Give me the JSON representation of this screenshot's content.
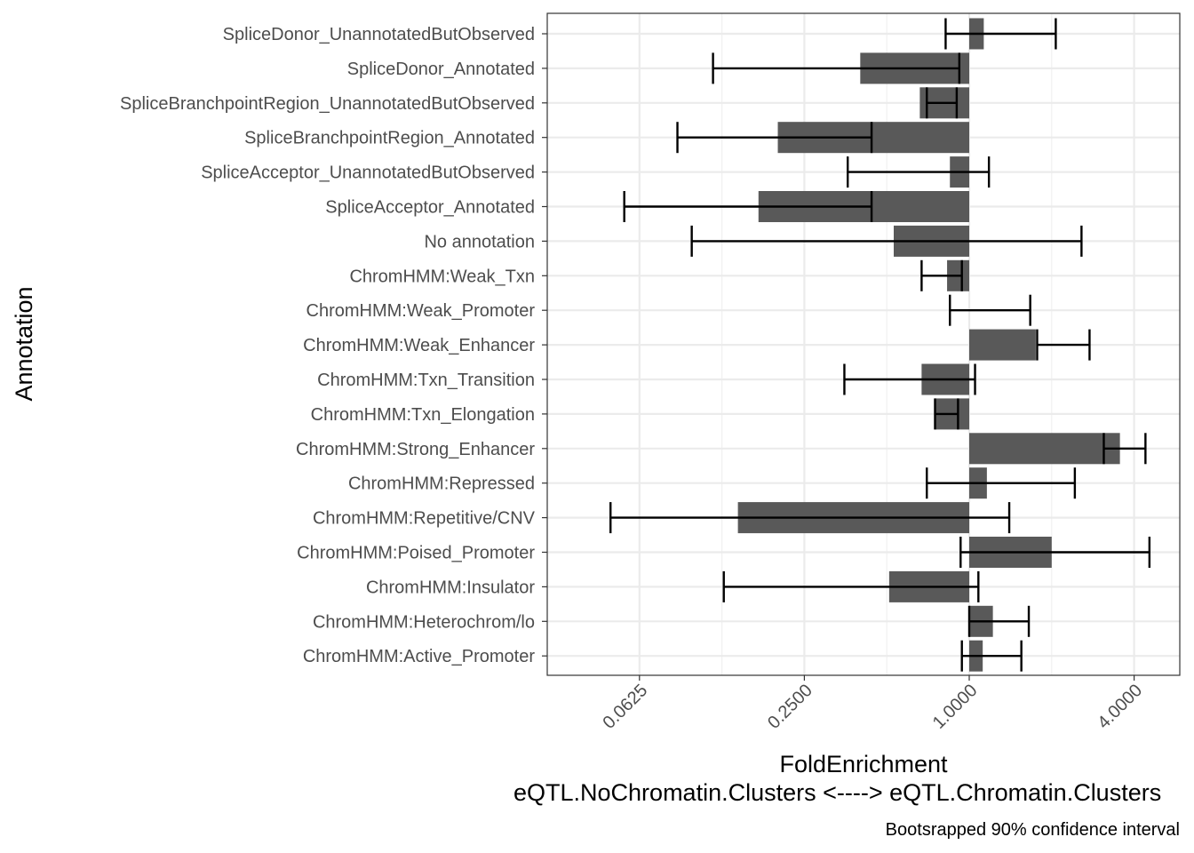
{
  "chart_data": {
    "type": "bar",
    "orientation": "horizontal",
    "xscale": "log2",
    "ylabel": "Annotation",
    "xlabel_line1": "FoldEnrichment",
    "xlabel_line2": "eQTL.NoChromatin.Clusters <----> eQTL.Chromatin.Clusters",
    "caption": "Bootsrapped 90% confidence interval",
    "xlim": [
      0.032,
      5.0
    ],
    "xticks": [
      0.0625,
      0.25,
      1.0,
      4.0
    ],
    "xtick_labels": [
      "0.0625",
      "0.2500",
      "1.0000",
      "4.0000"
    ],
    "baseline": 1.0,
    "grid": true,
    "bar_color": "#595959",
    "categories": [
      "SpliceDonor_UnannotatedButObserved",
      "SpliceDonor_Annotated",
      "SpliceBranchpointRegion_UnannotatedButObserved",
      "SpliceBranchpointRegion_Annotated",
      "SpliceAcceptor_UnannotatedButObserved",
      "SpliceAcceptor_Annotated",
      "No annotation",
      "ChromHMM:Weak_Txn",
      "ChromHMM:Weak_Promoter",
      "ChromHMM:Weak_Enhancer",
      "ChromHMM:Txn_Transition",
      "ChromHMM:Txn_Elongation",
      "ChromHMM:Strong_Enhancer",
      "ChromHMM:Repressed",
      "ChromHMM:Repetitive/CNV",
      "ChromHMM:Poised_Promoter",
      "ChromHMM:Insulator",
      "ChromHMM:Heterochrom/lo",
      "ChromHMM:Active_Promoter"
    ],
    "values": [
      1.13,
      0.4,
      0.66,
      0.2,
      0.85,
      0.17,
      0.53,
      0.83,
      1.0,
      1.75,
      0.67,
      0.75,
      3.55,
      1.16,
      0.143,
      2.0,
      0.51,
      1.22,
      1.12
    ],
    "ci_low": [
      0.82,
      0.116,
      0.7,
      0.086,
      0.36,
      0.055,
      0.097,
      0.67,
      0.85,
      1.77,
      0.35,
      0.75,
      3.1,
      0.7,
      0.049,
      0.93,
      0.127,
      1.0,
      0.94
    ],
    "ci_high": [
      2.07,
      0.92,
      0.9,
      0.44,
      1.18,
      0.44,
      2.57,
      0.94,
      1.67,
      2.75,
      1.05,
      0.91,
      4.4,
      2.43,
      1.4,
      4.55,
      1.08,
      1.65,
      1.55
    ]
  }
}
